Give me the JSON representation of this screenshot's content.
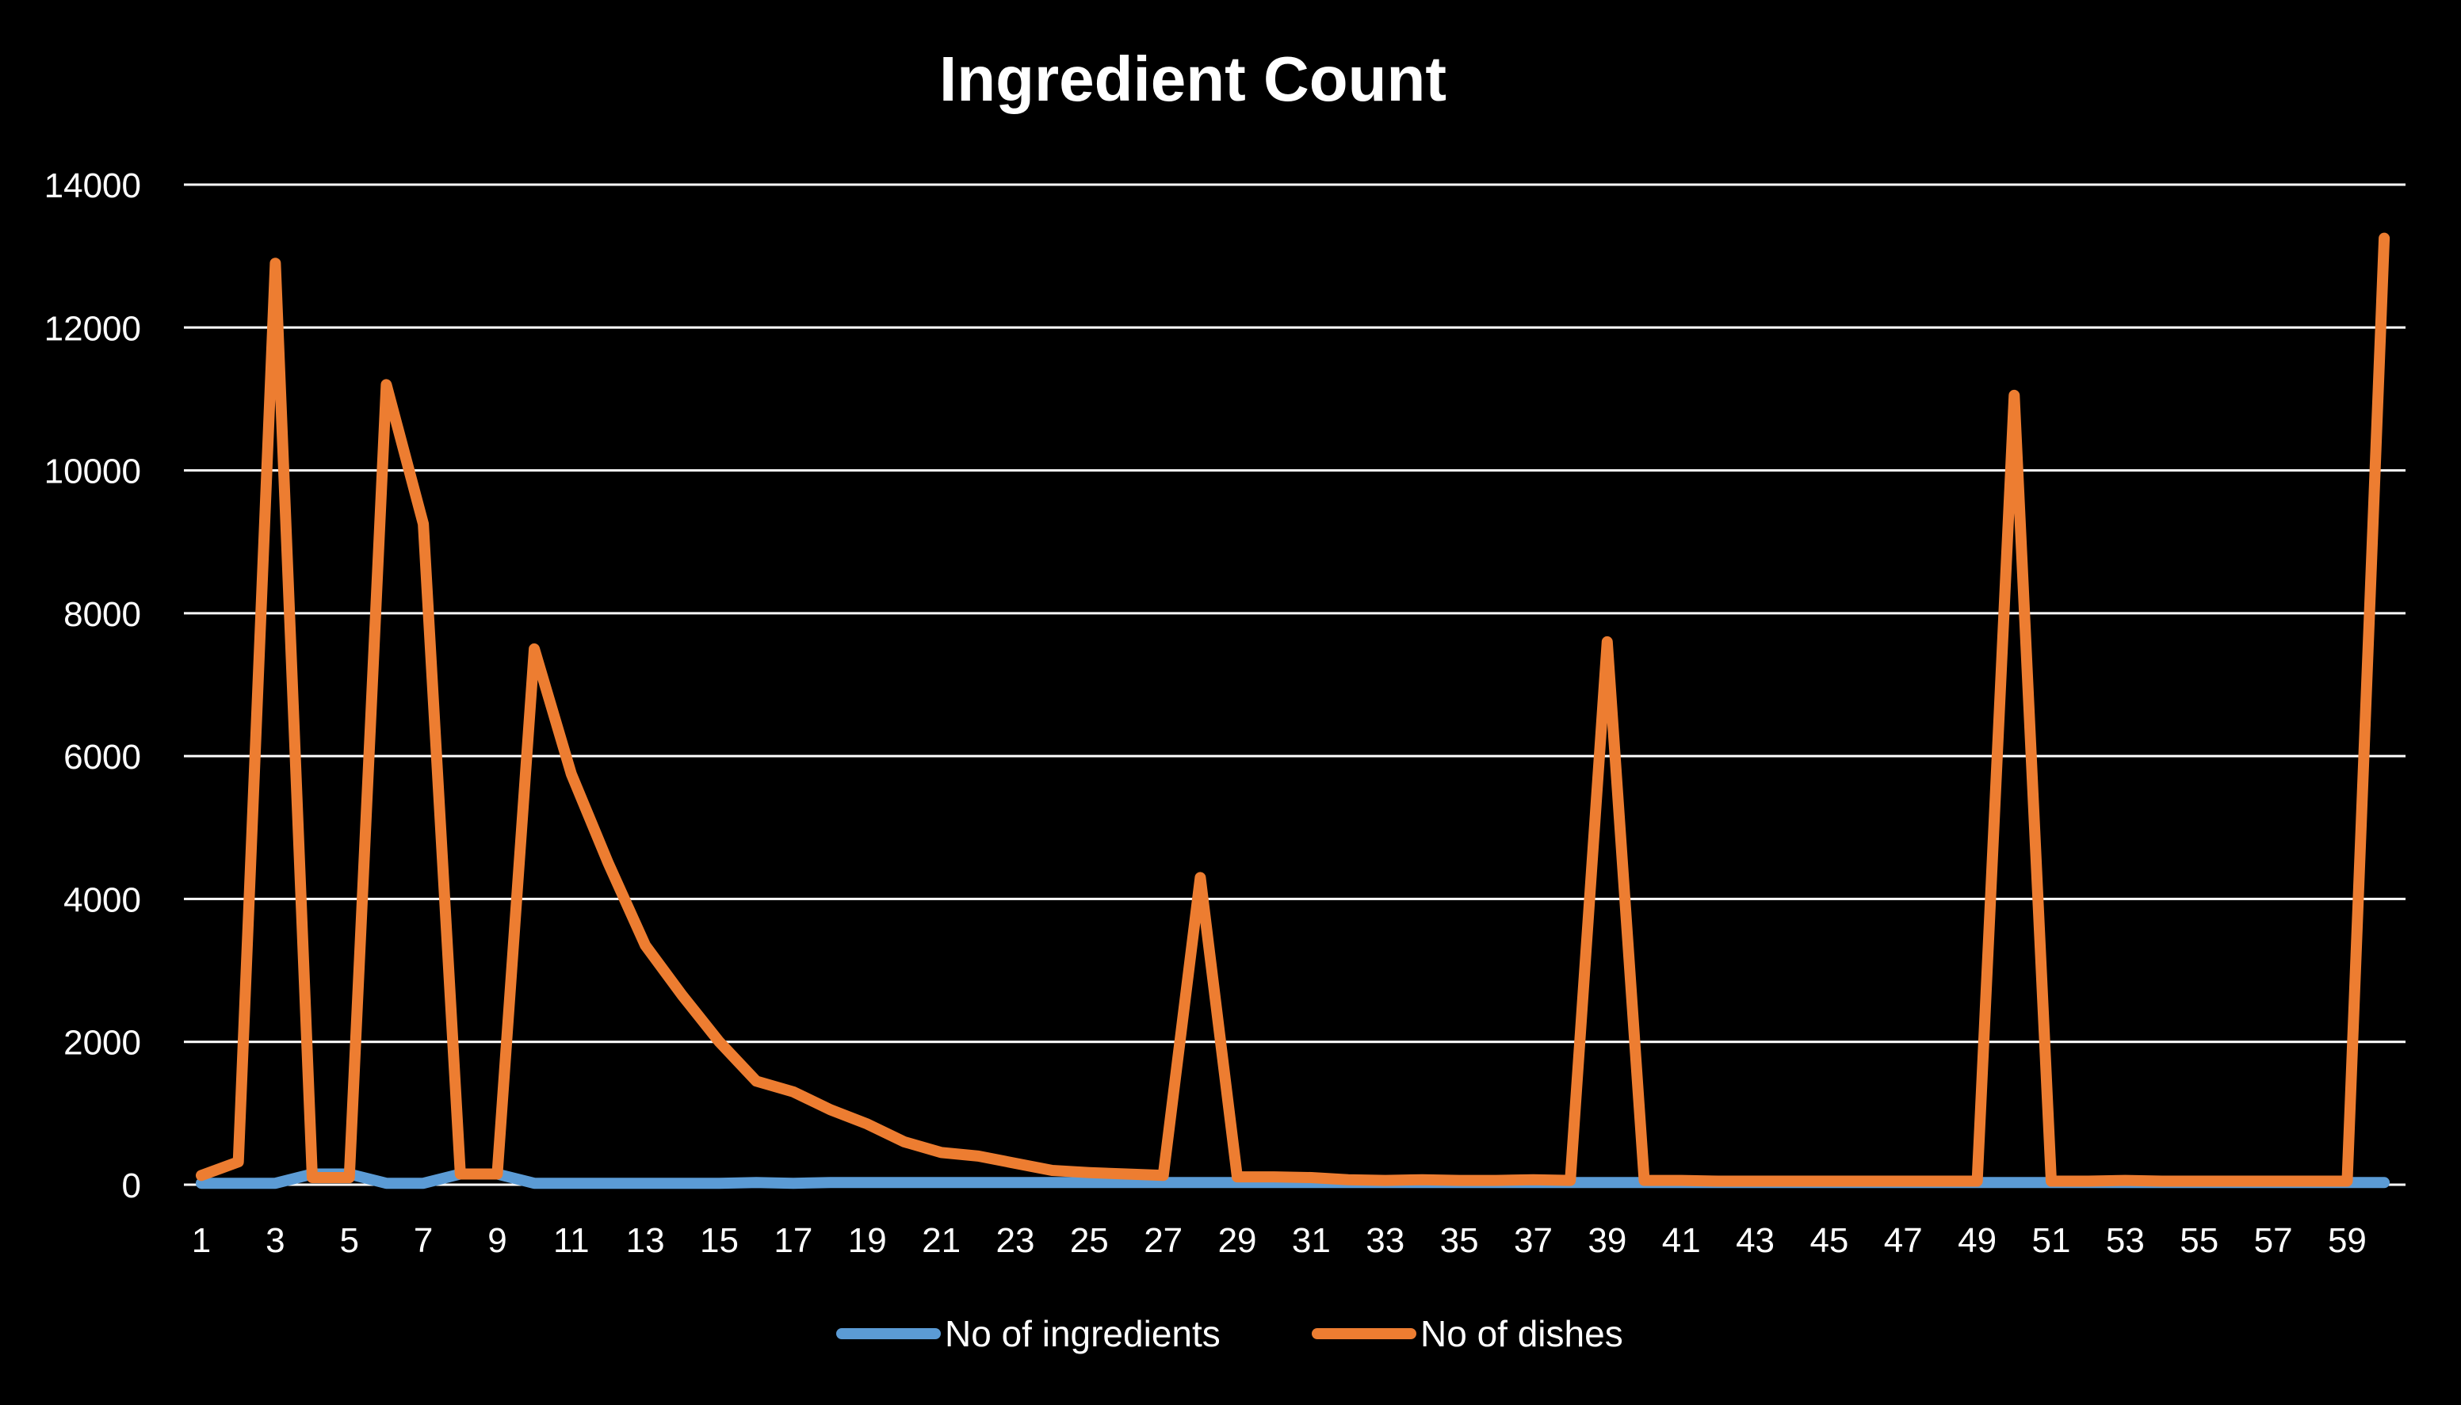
{
  "chart_data": {
    "type": "line",
    "title": "Ingredient Count",
    "xlabel": "",
    "ylabel": "",
    "ylim": [
      0,
      14000
    ],
    "yticks": [
      0,
      2000,
      4000,
      6000,
      8000,
      10000,
      12000,
      14000
    ],
    "xlim": [
      1,
      60
    ],
    "xtick_labels": [
      "1",
      "3",
      "5",
      "7",
      "9",
      "11",
      "13",
      "15",
      "17",
      "19",
      "21",
      "23",
      "25",
      "27",
      "29",
      "31",
      "33",
      "35",
      "37",
      "39",
      "41",
      "43",
      "45",
      "47",
      "49",
      "51",
      "53",
      "55",
      "57",
      "59"
    ],
    "x": [
      1,
      2,
      3,
      4,
      5,
      6,
      7,
      8,
      9,
      10,
      11,
      12,
      13,
      14,
      15,
      16,
      17,
      18,
      19,
      20,
      21,
      22,
      23,
      24,
      25,
      26,
      27,
      28,
      29,
      30,
      31,
      32,
      33,
      34,
      35,
      36,
      37,
      38,
      39,
      40,
      41,
      42,
      43,
      44,
      45,
      46,
      47,
      48,
      49,
      50,
      51,
      52,
      53,
      54,
      55,
      56,
      57,
      58,
      59,
      60
    ],
    "grid": true,
    "legend_position": "bottom",
    "series": [
      {
        "name": "No of ingredients",
        "color": "#5B9BD5",
        "values": [
          20,
          20,
          20,
          150,
          150,
          20,
          20,
          150,
          150,
          20,
          20,
          20,
          20,
          20,
          20,
          30,
          20,
          30,
          30,
          30,
          30,
          30,
          30,
          30,
          30,
          30,
          30,
          30,
          30,
          30,
          30,
          30,
          30,
          30,
          30,
          30,
          30,
          30,
          30,
          30,
          30,
          30,
          30,
          30,
          30,
          30,
          30,
          30,
          30,
          30,
          30,
          30,
          30,
          30,
          30,
          30,
          30,
          30,
          30,
          30
        ]
      },
      {
        "name": "No of dishes",
        "color": "#ED7D31",
        "values": [
          130,
          320,
          12900,
          100,
          100,
          11200,
          9250,
          150,
          150,
          7500,
          5750,
          4500,
          3350,
          2650,
          2000,
          1450,
          1300,
          1050,
          850,
          600,
          450,
          400,
          300,
          200,
          170,
          150,
          130,
          4300,
          110,
          110,
          100,
          70,
          60,
          70,
          60,
          60,
          70,
          60,
          7600,
          60,
          60,
          50,
          50,
          50,
          50,
          50,
          50,
          50,
          50,
          11050,
          50,
          50,
          60,
          50,
          50,
          50,
          50,
          50,
          50,
          13250
        ]
      }
    ]
  }
}
